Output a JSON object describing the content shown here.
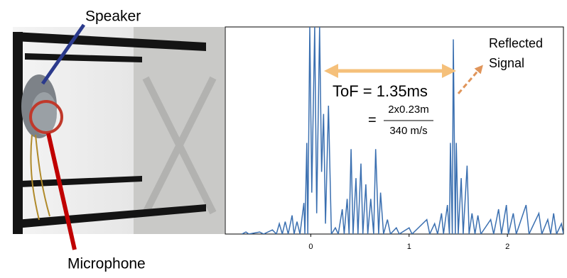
{
  "figure": {
    "speaker_label": "Speaker",
    "microphone_label": "Microphone"
  },
  "chart_data": {
    "type": "line",
    "x": [
      -0.7,
      -0.66,
      -0.63,
      -0.52,
      -0.48,
      -0.39,
      -0.35,
      -0.32,
      -0.29,
      -0.26,
      -0.23,
      -0.19,
      -0.17,
      -0.14,
      -0.11,
      -0.07,
      -0.06,
      -0.04,
      -0.03,
      -0.01,
      0.01,
      0.04,
      0.06,
      0.09,
      0.11,
      0.13,
      0.15,
      0.18,
      0.21,
      0.25,
      0.28,
      0.32,
      0.34,
      0.37,
      0.39,
      0.41,
      0.43,
      0.46,
      0.48,
      0.51,
      0.53,
      0.56,
      0.58,
      0.61,
      0.64,
      0.66,
      0.69,
      0.71,
      0.74,
      0.78,
      0.81,
      0.87,
      0.9,
      1.0,
      1.03,
      1.18,
      1.21,
      1.26,
      1.29,
      1.33,
      1.35,
      1.39,
      1.41,
      1.42,
      1.44,
      1.45,
      1.47,
      1.48,
      1.5,
      1.53,
      1.55,
      1.59,
      1.61,
      1.64,
      1.67,
      1.7,
      1.73,
      1.83,
      1.86,
      1.91,
      1.94,
      1.99,
      2.01,
      2.06,
      2.09,
      2.19,
      2.22,
      2.32,
      2.35,
      2.41,
      2.44,
      2.47,
      2.5,
      2.55,
      2.57
    ],
    "series": [
      {
        "color": "#3a6fb0",
        "values": [
          0,
          1,
          0,
          1,
          0,
          2,
          0,
          5,
          0,
          6,
          0,
          9,
          0,
          6,
          0,
          15,
          0,
          44,
          0,
          100,
          20,
          100,
          10,
          100,
          30,
          58,
          5,
          62,
          0,
          3,
          0,
          12,
          0,
          17,
          0,
          41,
          0,
          27,
          0,
          34,
          0,
          24,
          0,
          17,
          0,
          41,
          0,
          20,
          0,
          7,
          0,
          3,
          0,
          3,
          0,
          7,
          0,
          5,
          0,
          10,
          0,
          14,
          0,
          44,
          0,
          94,
          0,
          44,
          0,
          27,
          0,
          33,
          0,
          10,
          0,
          9,
          0,
          7,
          0,
          12,
          0,
          14,
          0,
          10,
          0,
          14,
          0,
          10,
          0,
          7,
          0,
          10,
          0,
          5,
          0
        ]
      }
    ],
    "xlim": [
      -0.87,
      2.57
    ],
    "xticks": [
      0,
      1,
      2
    ],
    "ylim": [
      0,
      100
    ],
    "annotations": {
      "tof": "ToF = 1.35ms",
      "equals": "=",
      "numerator": "2x0.23m",
      "denominator": "340 m/s",
      "reflected": [
        "Reflected",
        "Signal"
      ]
    }
  }
}
